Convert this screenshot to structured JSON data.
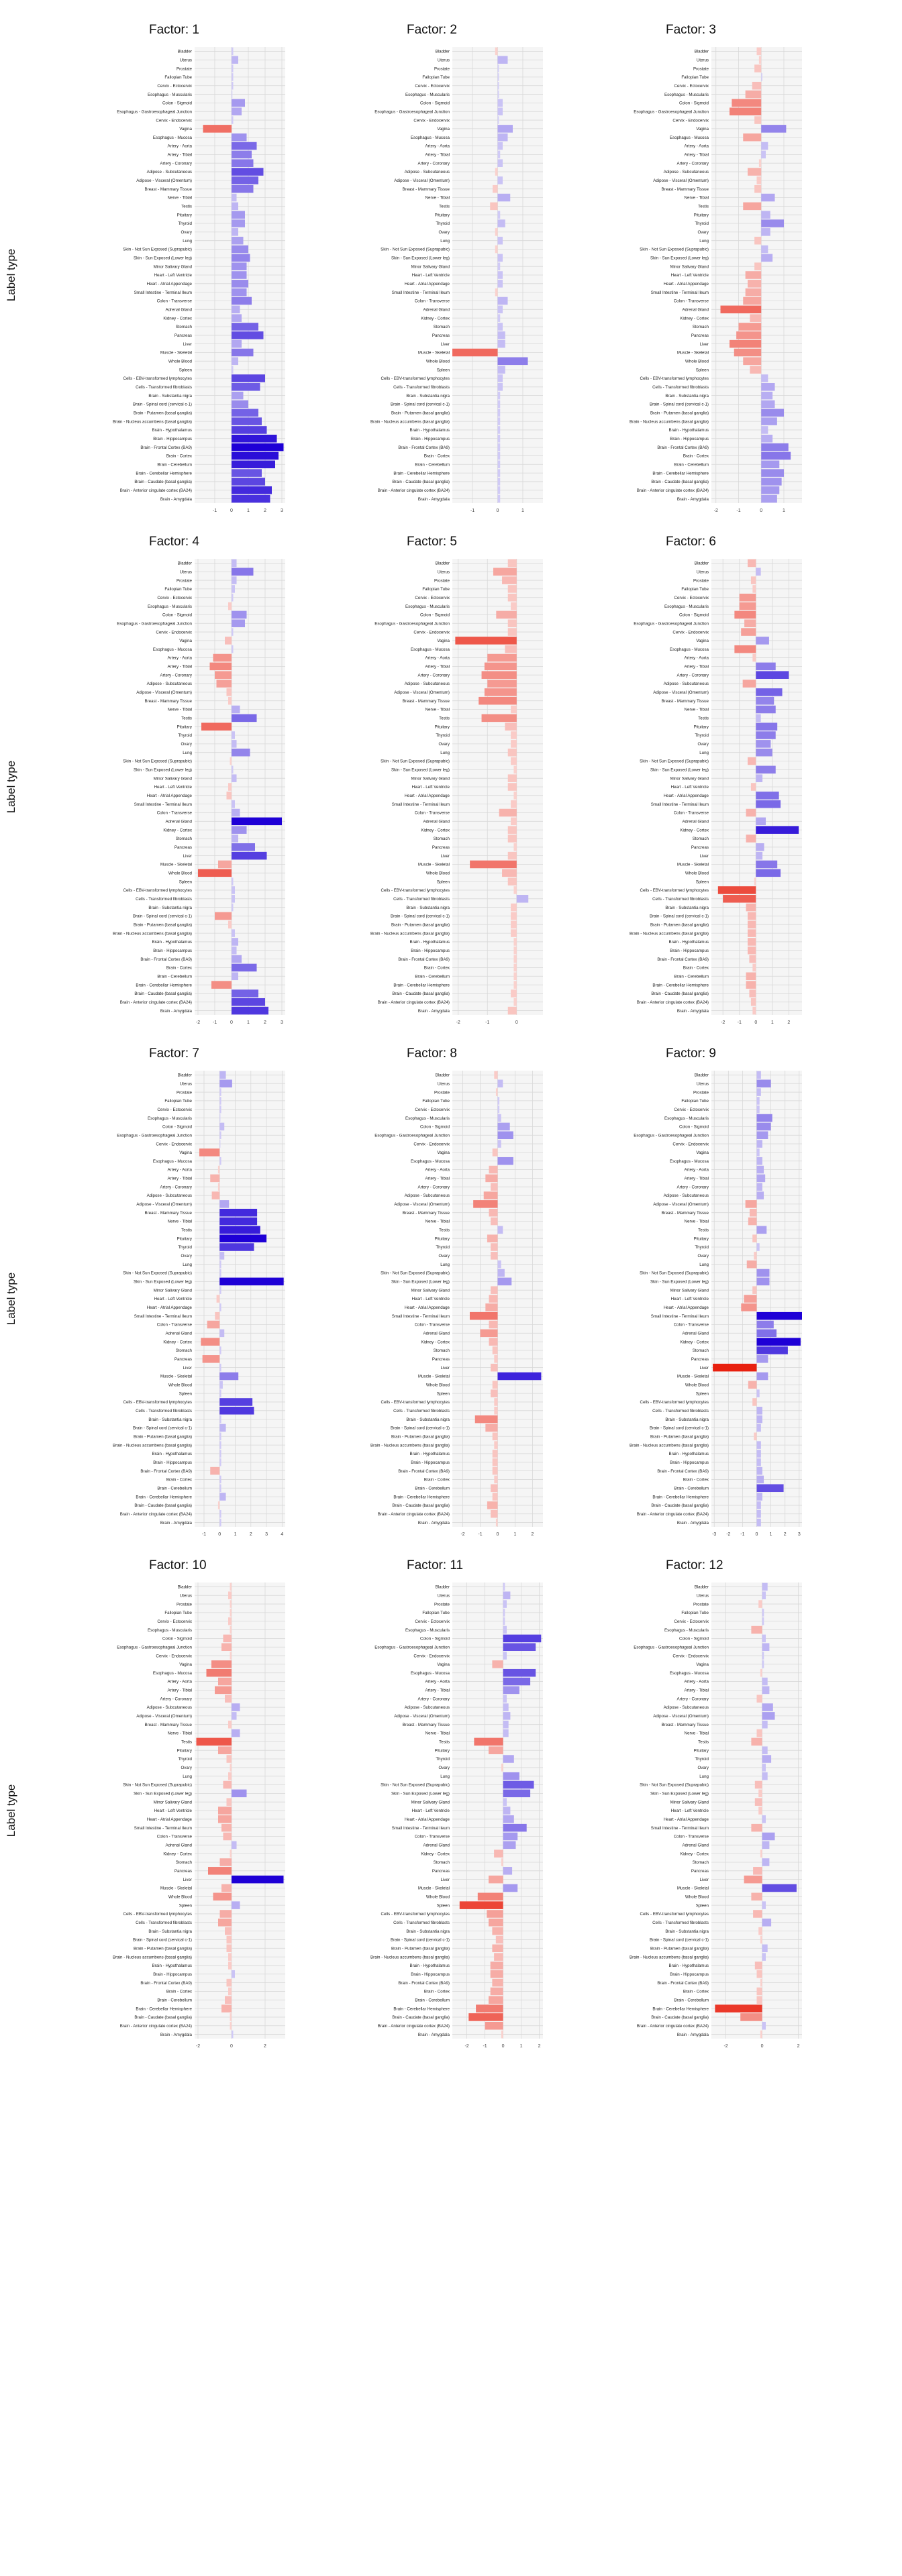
{
  "figure": {
    "ylabel": "Label type",
    "tissues": [
      "Bladder",
      "Uterus",
      "Prostate",
      "Fallopian Tube",
      "Cervix - Ectocervix",
      "Esophagus - Muscularis",
      "Colon - Sigmoid",
      "Esophagus - Gastroesophageal Junction",
      "Cervix - Endocervix",
      "Vagina",
      "Esophagus - Mucosa",
      "Artery - Aorta",
      "Artery - Tibial",
      "Artery - Coronary",
      "Adipose - Subcutaneous",
      "Adipose - Visceral (Omentum)",
      "Breast - Mammary Tissue",
      "Nerve - Tibial",
      "Testis",
      "Pituitary",
      "Thyroid",
      "Ovary",
      "Lung",
      "Skin - Not Sun Exposed (Suprapubic)",
      "Skin - Sun Exposed (Lower leg)",
      "Minor Salivary Gland",
      "Heart - Left Ventricle",
      "Heart - Atrial Appendage",
      "Small Intestine - Terminal Ileum",
      "Colon - Transverse",
      "Adrenal Gland",
      "Kidney - Cortex",
      "Stomach",
      "Pancreas",
      "Liver",
      "Muscle - Skeletal",
      "Whole Blood",
      "Spleen",
      "Cells - EBV-transformed lymphocytes",
      "Cells - Transformed fibroblasts",
      "Brain - Substantia nigra",
      "Brain - Spinal cord (cervical c-1)",
      "Brain - Putamen (basal ganglia)",
      "Brain - Nucleus accumbens (basal ganglia)",
      "Brain - Hypothalamus",
      "Brain - Hippocampus",
      "Brain - Frontal Cortex (BA9)",
      "Brain - Cortex",
      "Brain - Cerebellum",
      "Brain - Cerebellar Hemisphere",
      "Brain - Caudate (basal ganglia)",
      "Brain - Anterior cingulate cortex (BA24)",
      "Brain - Amygdala"
    ],
    "colors": {
      "negative": "#e8200f",
      "positive": "#1e00d6",
      "zero": "#ffffff",
      "grid": "#d8d8d8",
      "panel_bg": "#f5f5f5"
    }
  },
  "chart_data": [
    {
      "type": "bar",
      "orientation": "horizontal",
      "title": "Factor: 1",
      "xlim": [
        -2.2,
        3.2
      ],
      "xticks": [
        -1,
        0,
        1,
        2,
        3
      ],
      "values": [
        0.1,
        0.4,
        0.1,
        0.1,
        0.1,
        0.05,
        0.8,
        0.6,
        0.1,
        -1.7,
        0.9,
        1.5,
        1.2,
        1.3,
        1.9,
        1.6,
        1.3,
        0.3,
        0.4,
        0.8,
        0.8,
        0.4,
        0.7,
        1.0,
        1.1,
        0.9,
        0.9,
        1.0,
        0.9,
        1.2,
        0.5,
        0.6,
        1.6,
        1.9,
        0.6,
        1.3,
        0.4,
        0.1,
        2.0,
        1.7,
        0.7,
        1.0,
        1.6,
        1.8,
        2.1,
        2.7,
        3.1,
        2.8,
        2.6,
        1.8,
        2.0,
        2.4,
        2.3
      ]
    },
    {
      "type": "bar",
      "orientation": "horizontal",
      "title": "Factor: 2",
      "xlim": [
        -1.8,
        1.8
      ],
      "xticks": [
        -1,
        0,
        1
      ],
      "xtick_labels": [
        "-1",
        "0",
        "1"
      ],
      "values": [
        -0.1,
        0.4,
        0.05,
        0.05,
        0.05,
        0.05,
        0.2,
        0.2,
        0.05,
        0.6,
        0.4,
        0.2,
        0.1,
        0.2,
        -0.1,
        0.2,
        -0.2,
        0.5,
        -0.3,
        0.1,
        0.3,
        -0.1,
        0.2,
        -0.1,
        0.2,
        0.1,
        0.2,
        0.2,
        -0.1,
        0.4,
        0.2,
        0.1,
        0.2,
        0.3,
        0.3,
        -1.8,
        1.2,
        0.3,
        0.2,
        0.2,
        0.1,
        0.1,
        0.1,
        0.1,
        0.1,
        0.1,
        0.1,
        0.1,
        0.1,
        0.1,
        0.1,
        0.1,
        0.1
      ]
    },
    {
      "type": "bar",
      "orientation": "horizontal",
      "title": "Factor: 3",
      "xlim": [
        -2.2,
        1.8
      ],
      "xticks": [
        -2,
        -1,
        0,
        1
      ],
      "values": [
        -0.2,
        -0.1,
        -0.3,
        0.05,
        -0.4,
        -0.7,
        -1.3,
        -1.4,
        -0.3,
        1.1,
        -0.8,
        0.3,
        0.2,
        -0.1,
        -0.6,
        -0.2,
        -0.3,
        0.6,
        -0.8,
        0.4,
        1.0,
        0.4,
        -0.3,
        0.3,
        0.5,
        -0.3,
        -0.7,
        -0.6,
        -0.7,
        -0.8,
        -1.8,
        -0.5,
        -1.0,
        -1.1,
        -1.4,
        -1.2,
        -0.8,
        -0.5,
        0.3,
        0.6,
        0.5,
        0.6,
        1.0,
        0.7,
        0.3,
        0.5,
        1.2,
        1.3,
        0.8,
        1.0,
        0.9,
        0.8,
        0.7
      ]
    },
    {
      "type": "bar",
      "orientation": "horizontal",
      "title": "Factor: 4",
      "xlim": [
        -2.2,
        3.2
      ],
      "xticks": [
        -2,
        -1,
        0,
        1,
        2,
        3
      ],
      "values": [
        0.3,
        1.3,
        0.3,
        0.2,
        0.1,
        -0.2,
        0.9,
        0.8,
        0.1,
        -0.4,
        0.1,
        -1.1,
        -1.3,
        -1.0,
        -0.9,
        -0.3,
        -0.2,
        0.5,
        1.5,
        -1.8,
        0.2,
        0.3,
        1.1,
        -0.1,
        0.1,
        0.3,
        -0.2,
        -0.3,
        0.2,
        0.5,
        3.0,
        0.9,
        0.4,
        1.4,
        2.1,
        -0.8,
        -2.0,
        0.1,
        0.2,
        0.2,
        0.1,
        -1.0,
        -0.2,
        0.2,
        0.4,
        0.3,
        0.6,
        1.5,
        0.4,
        -1.2,
        1.6,
        2.0,
        2.2
      ]
    },
    {
      "type": "bar",
      "orientation": "horizontal",
      "title": "Factor: 5",
      "xlim": [
        -2.2,
        0.9
      ],
      "xticks": [
        -2,
        -1,
        0
      ],
      "values": [
        -0.3,
        -0.8,
        -0.5,
        -0.3,
        -0.3,
        -0.2,
        -0.7,
        -0.3,
        -0.3,
        -2.1,
        -0.4,
        -1.0,
        -1.1,
        -1.2,
        -1.0,
        -1.1,
        -1.3,
        -0.2,
        -1.2,
        -0.4,
        -0.2,
        -0.2,
        -0.3,
        -0.2,
        -0.1,
        -0.3,
        -0.3,
        -0.1,
        -0.2,
        -0.6,
        -0.2,
        -0.3,
        -0.3,
        -0.1,
        -0.3,
        -1.6,
        -0.5,
        -0.3,
        -0.1,
        0.4,
        -0.2,
        -0.2,
        -0.2,
        -0.2,
        -0.1,
        -0.1,
        -0.1,
        -0.1,
        -0.1,
        -0.1,
        -0.2,
        -0.1,
        -0.3
      ]
    },
    {
      "type": "bar",
      "orientation": "horizontal",
      "title": "Factor: 6",
      "xlim": [
        -2.7,
        2.8
      ],
      "xticks": [
        -2,
        -1,
        0,
        1,
        2
      ],
      "values": [
        -0.5,
        0.3,
        -0.3,
        -0.2,
        -1.0,
        -1.0,
        -1.3,
        -0.7,
        -0.9,
        0.8,
        -1.3,
        -0.2,
        1.2,
        2.0,
        -0.8,
        1.6,
        1.1,
        1.2,
        0.3,
        1.3,
        1.2,
        0.9,
        1.0,
        -0.5,
        1.2,
        0.4,
        -0.3,
        1.4,
        1.5,
        -0.6,
        0.6,
        2.6,
        -0.6,
        0.5,
        0.4,
        1.3,
        1.5,
        -0.1,
        -2.3,
        -2.0,
        -0.6,
        -0.5,
        -0.5,
        -0.5,
        -0.5,
        -0.5,
        -0.4,
        -0.2,
        -0.6,
        -0.6,
        -0.4,
        -0.3,
        -0.2
      ]
    },
    {
      "type": "bar",
      "orientation": "horizontal",
      "title": "Factor: 7",
      "xlim": [
        -1.6,
        4.2
      ],
      "xticks": [
        -1,
        0,
        1,
        2,
        3,
        4
      ],
      "values": [
        0.4,
        0.8,
        0.1,
        0.1,
        0.1,
        0.05,
        0.3,
        0.1,
        0.05,
        -1.3,
        0.1,
        -0.1,
        -0.6,
        -0.1,
        -0.5,
        0.6,
        2.4,
        2.4,
        2.6,
        3.0,
        2.2,
        0.3,
        0.1,
        0.1,
        4.1,
        0.1,
        -0.2,
        0.1,
        -0.3,
        -0.8,
        0.3,
        -1.2,
        0.1,
        -1.1,
        0.1,
        1.2,
        0.2,
        0.1,
        2.1,
        2.2,
        0.1,
        0.4,
        0.1,
        0.1,
        0.1,
        0.1,
        -0.6,
        0.1,
        0.1,
        0.4,
        -0.1,
        0.1,
        0.1
      ]
    },
    {
      "type": "bar",
      "orientation": "horizontal",
      "title": "Factor: 8",
      "xlim": [
        -2.6,
        2.6
      ],
      "xticks": [
        -2,
        -1,
        0,
        1,
        2
      ],
      "values": [
        -0.2,
        0.3,
        -0.1,
        0.1,
        0.1,
        0.2,
        0.7,
        0.9,
        0.2,
        -0.3,
        0.9,
        -0.5,
        -0.7,
        -0.4,
        -0.8,
        -1.4,
        -0.5,
        -0.4,
        0.3,
        -0.6,
        -0.4,
        -0.4,
        0.2,
        0.4,
        0.8,
        -0.4,
        -0.5,
        -0.7,
        -1.6,
        -0.5,
        -1.0,
        -0.5,
        -0.3,
        -0.2,
        -0.4,
        2.5,
        -0.3,
        -0.4,
        -0.2,
        -0.2,
        -1.3,
        -0.7,
        -0.3,
        -0.2,
        -0.3,
        -0.3,
        -0.3,
        -0.2,
        -0.4,
        -0.3,
        -0.6,
        -0.4,
        -0.1
      ]
    },
    {
      "type": "bar",
      "orientation": "horizontal",
      "title": "Factor: 9",
      "xlim": [
        -3.2,
        3.2
      ],
      "xticks": [
        -3,
        -2,
        -1,
        0,
        1,
        2,
        3
      ],
      "values": [
        0.3,
        1.0,
        0.3,
        0.2,
        0.2,
        1.1,
        1.0,
        0.8,
        0.4,
        0.2,
        0.4,
        0.5,
        0.6,
        0.4,
        0.5,
        -0.8,
        -0.5,
        -0.6,
        0.7,
        -0.3,
        0.2,
        -0.2,
        -0.7,
        0.9,
        0.9,
        -0.3,
        -0.9,
        -1.1,
        3.2,
        1.2,
        1.4,
        3.1,
        2.2,
        0.8,
        -3.1,
        0.8,
        -0.6,
        0.2,
        -0.3,
        0.4,
        0.4,
        0.3,
        -0.2,
        0.3,
        0.3,
        0.3,
        0.4,
        0.5,
        1.9,
        0.4,
        0.3,
        0.3,
        0.3
      ]
    },
    {
      "type": "bar",
      "orientation": "horizontal",
      "title": "Factor: 10",
      "xlim": [
        -2.2,
        3.2
      ],
      "xticks": [
        -2,
        0,
        2
      ],
      "values": [
        -0.1,
        -0.2,
        -0.1,
        -0.1,
        -0.2,
        -0.1,
        -0.5,
        -0.6,
        -0.1,
        -1.2,
        -1.5,
        -0.8,
        -1.0,
        -0.4,
        0.5,
        0.3,
        -0.2,
        0.5,
        -2.1,
        -0.8,
        -0.3,
        -0.1,
        -0.2,
        -0.5,
        0.9,
        -0.3,
        -0.8,
        -0.8,
        -0.6,
        -0.5,
        0.3,
        -0.1,
        -0.7,
        -1.4,
        3.1,
        -0.6,
        -1.1,
        0.5,
        -0.7,
        -0.8,
        -0.4,
        -0.3,
        -0.3,
        -0.2,
        -0.2,
        0.2,
        -0.3,
        -0.2,
        -0.4,
        -0.6,
        -0.1,
        -0.1,
        0.1
      ]
    },
    {
      "type": "bar",
      "orientation": "horizontal",
      "title": "Factor: 11",
      "xlim": [
        -2.8,
        2.2
      ],
      "xticks": [
        -2,
        -1,
        0,
        1,
        2
      ],
      "xtick_labels": [
        "-2",
        "-1",
        "0",
        "1",
        "2"
      ],
      "values": [
        0.1,
        0.4,
        0.2,
        0.1,
        0.1,
        0.2,
        2.1,
        1.8,
        0.2,
        -0.6,
        1.8,
        1.5,
        0.9,
        0.2,
        0.3,
        0.4,
        0.3,
        0.3,
        -1.6,
        -0.8,
        0.6,
        -0.1,
        0.9,
        1.7,
        1.5,
        0.2,
        0.4,
        0.6,
        1.3,
        0.8,
        0.7,
        -0.5,
        -0.1,
        0.5,
        -0.8,
        0.8,
        -1.4,
        -2.4,
        -0.9,
        -0.8,
        -0.6,
        -0.4,
        -0.6,
        -0.5,
        -0.7,
        -0.7,
        -0.6,
        -0.7,
        -0.8,
        -1.5,
        -1.9,
        -1.0,
        -0.1
      ]
    },
    {
      "type": "bar",
      "orientation": "horizontal",
      "title": "Factor: 12",
      "xlim": [
        -2.8,
        2.2
      ],
      "xticks": [
        -2,
        0,
        2
      ],
      "values": [
        0.3,
        0.2,
        -0.2,
        0.1,
        0.1,
        -0.6,
        0.2,
        0.4,
        0.1,
        0.1,
        -0.1,
        0.3,
        0.4,
        -0.3,
        0.6,
        0.7,
        0.3,
        -0.3,
        -0.6,
        0.3,
        0.5,
        0.2,
        0.3,
        -0.4,
        -0.2,
        -0.4,
        -0.2,
        0.2,
        -0.6,
        0.7,
        0.4,
        -0.1,
        0.4,
        -0.5,
        -1.0,
        1.9,
        -0.6,
        0.2,
        -0.5,
        0.5,
        -0.2,
        -0.1,
        0.3,
        0.2,
        -0.4,
        -0.3,
        -0.1,
        -0.3,
        -0.3,
        -2.6,
        -1.2,
        0.2,
        -0.1
      ]
    }
  ]
}
